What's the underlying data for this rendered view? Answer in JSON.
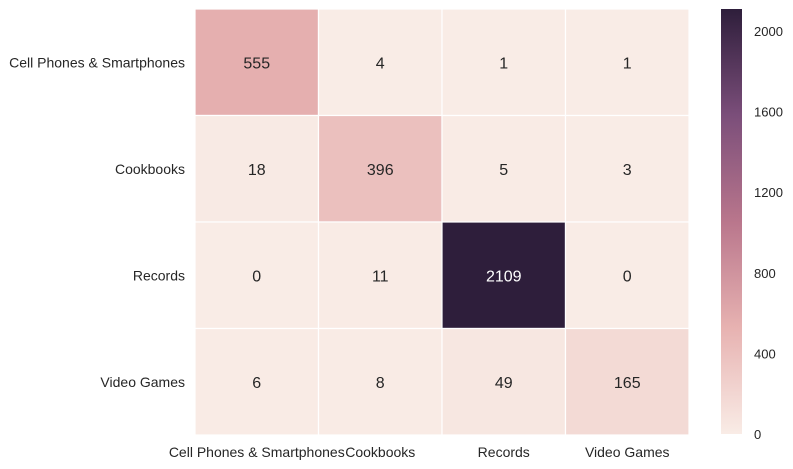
{
  "chart_data": {
    "type": "heatmap",
    "rows": [
      "Cell Phones & Smartphones",
      "Cookbooks",
      "Records",
      "Video Games"
    ],
    "columns": [
      "Cell Phones & Smartphones",
      "Cookbooks",
      "Records",
      "Video Games"
    ],
    "values": [
      [
        555,
        4,
        1,
        1
      ],
      [
        18,
        396,
        5,
        3
      ],
      [
        0,
        11,
        2109,
        0
      ],
      [
        6,
        8,
        49,
        165
      ]
    ],
    "title": "",
    "xlabel": "",
    "ylabel": "",
    "colorbar": {
      "min": 0,
      "max": 2109,
      "ticks": [
        "0",
        "400",
        "800",
        "1200",
        "1600",
        "2000"
      ]
    },
    "colormap": [
      "#f9ece6",
      "#e7b2b1",
      "#b9768c",
      "#7b4e7a",
      "#2e1e3b"
    ],
    "grid": false,
    "cell_border_color": "#ffffff"
  }
}
